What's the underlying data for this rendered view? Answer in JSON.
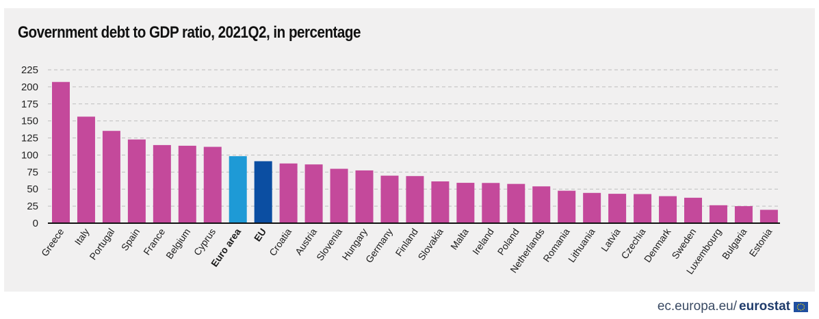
{
  "colors": {
    "country": "#c4499b",
    "euro_area": "#1e9ad6",
    "eu": "#0b4ea2",
    "panel": "#f1f0f0",
    "grid": "#bdbdbd",
    "axis": "#111111"
  },
  "footer": {
    "url": "ec.europa.eu/",
    "brand": "eurostat",
    "logo_icon": "eu-flag-icon"
  },
  "chart_data": {
    "type": "bar",
    "title": "Government debt to GDP ratio, 2021Q2, in percentage",
    "xlabel": "",
    "ylabel": "",
    "ylim": [
      0,
      225
    ],
    "yticks": [
      0,
      25,
      50,
      75,
      100,
      125,
      150,
      175,
      200,
      225
    ],
    "grid": true,
    "categories": [
      "Greece",
      "Italy",
      "Portugal",
      "Spain",
      "France",
      "Belgium",
      "Cyprus",
      "Euro area",
      "EU",
      "Croatia",
      "Austria",
      "Slovenia",
      "Hungary",
      "Germany",
      "Finland",
      "Slovakia",
      "Malta",
      "Ireland",
      "Poland",
      "Netherlands",
      "Romania",
      "Lithuania",
      "Latvia",
      "Czechia",
      "Denmark",
      "Sweden",
      "Luxembourg",
      "Bulgaria",
      "Estonia"
    ],
    "values": [
      207.2,
      156.3,
      135.4,
      122.8,
      114.6,
      113.6,
      112.0,
      98.3,
      90.9,
      87.6,
      86.2,
      79.8,
      77.4,
      69.7,
      69.1,
      61.3,
      59.2,
      59.0,
      57.6,
      54.0,
      47.6,
      44.4,
      43.1,
      42.7,
      39.6,
      37.3,
      26.3,
      25.0,
      19.6
    ],
    "highlight": {
      "Euro area": "euro_area",
      "EU": "eu"
    }
  }
}
